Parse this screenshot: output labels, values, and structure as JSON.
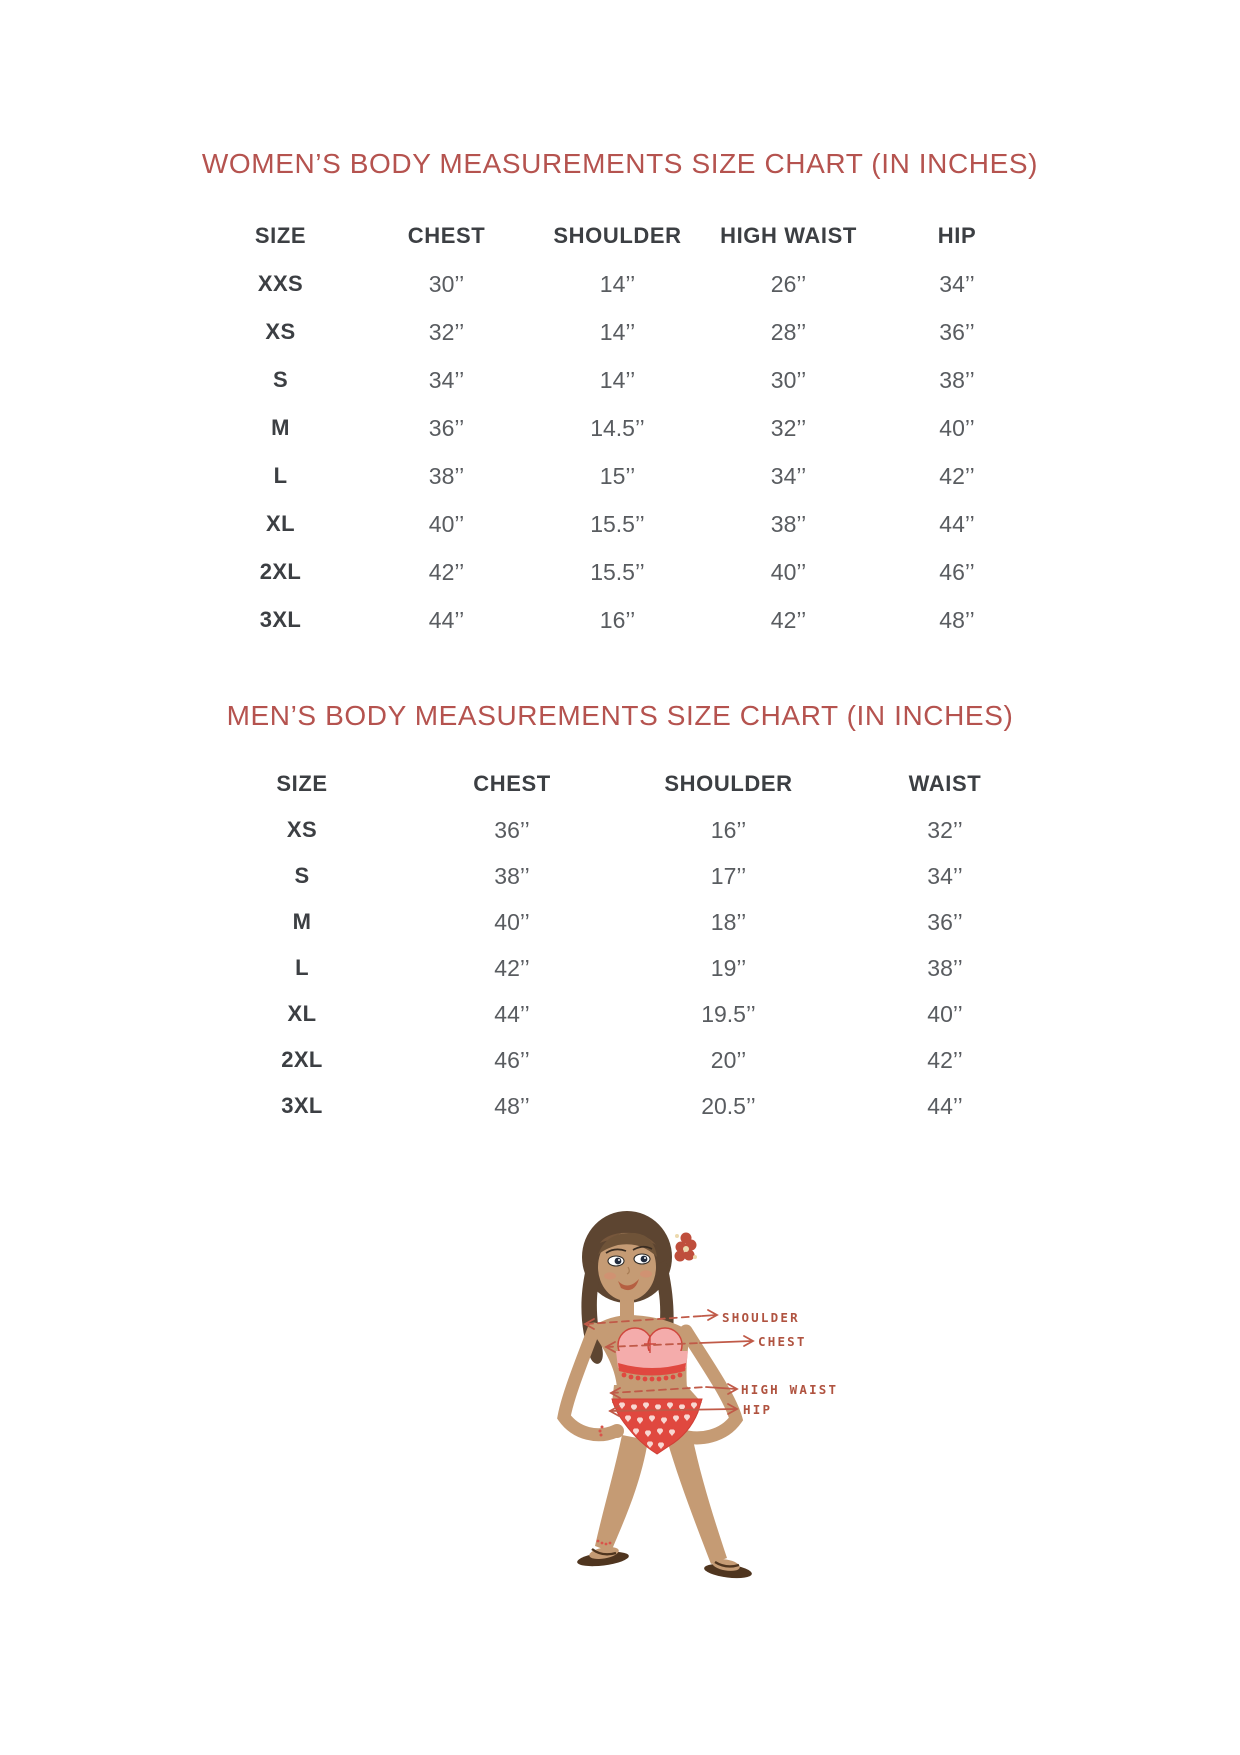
{
  "page": {
    "background_color": "#ffffff",
    "accent_color": "#b5534f",
    "table_header_color": "#3c3f43",
    "table_value_color": "#595c60"
  },
  "women_chart": {
    "title": "WOMEN’S BODY MEASUREMENTS SIZE CHART (IN INCHES)",
    "type": "table",
    "headers": [
      "SIZE",
      "CHEST",
      "SHOULDER",
      "HIGH WAIST",
      "HIP"
    ],
    "rows": [
      [
        "XXS",
        "30’’",
        "14’’",
        "26’’",
        "34’’"
      ],
      [
        "XS",
        "32’’",
        "14’’",
        "28’’",
        "36’’"
      ],
      [
        "S",
        "34’’",
        "14’’",
        "30’’",
        "38’’"
      ],
      [
        "M",
        "36’’",
        "14.5’’",
        "32’’",
        "40’’"
      ],
      [
        "L",
        "38’’",
        "15’’",
        "34’’",
        "42’’"
      ],
      [
        "XL",
        "40’’",
        "15.5’’",
        "38’’",
        "44’’"
      ],
      [
        "2XL",
        "42’’",
        "15.5’’",
        "40’’",
        "46’’"
      ],
      [
        "3XL",
        "44’’",
        "16’’",
        "42’’",
        "48’’"
      ]
    ]
  },
  "men_chart": {
    "title": "MEN’S BODY MEASUREMENTS SIZE CHART (IN INCHES)",
    "type": "table",
    "headers": [
      "SIZE",
      "CHEST",
      "SHOULDER",
      "WAIST"
    ],
    "rows": [
      [
        "XS",
        "36’’",
        "16’’",
        "32’’"
      ],
      [
        "S",
        "38’’",
        "17’’",
        "34’’"
      ],
      [
        "M",
        "40’’",
        "18’’",
        "36’’"
      ],
      [
        "L",
        "42’’",
        "19’’",
        "38’’"
      ],
      [
        "XL",
        "44’’",
        "19.5’’",
        "40’’"
      ],
      [
        "2XL",
        "46’’",
        "20’’",
        "42’’"
      ],
      [
        "3XL",
        "48’’",
        "20.5’’",
        "44’’"
      ]
    ]
  },
  "figure": {
    "labels": {
      "shoulder": "SHOULDER",
      "chest": "CHEST",
      "high_waist": "HIGH WAIST",
      "hip": "HIP"
    },
    "label_color": "#b05340",
    "arrow_color": "#c05a48",
    "skin_color": "#c59b74",
    "hair_color": "#5d4531",
    "bikini_pink": "#f4acab",
    "bikini_red": "#e0483f"
  }
}
